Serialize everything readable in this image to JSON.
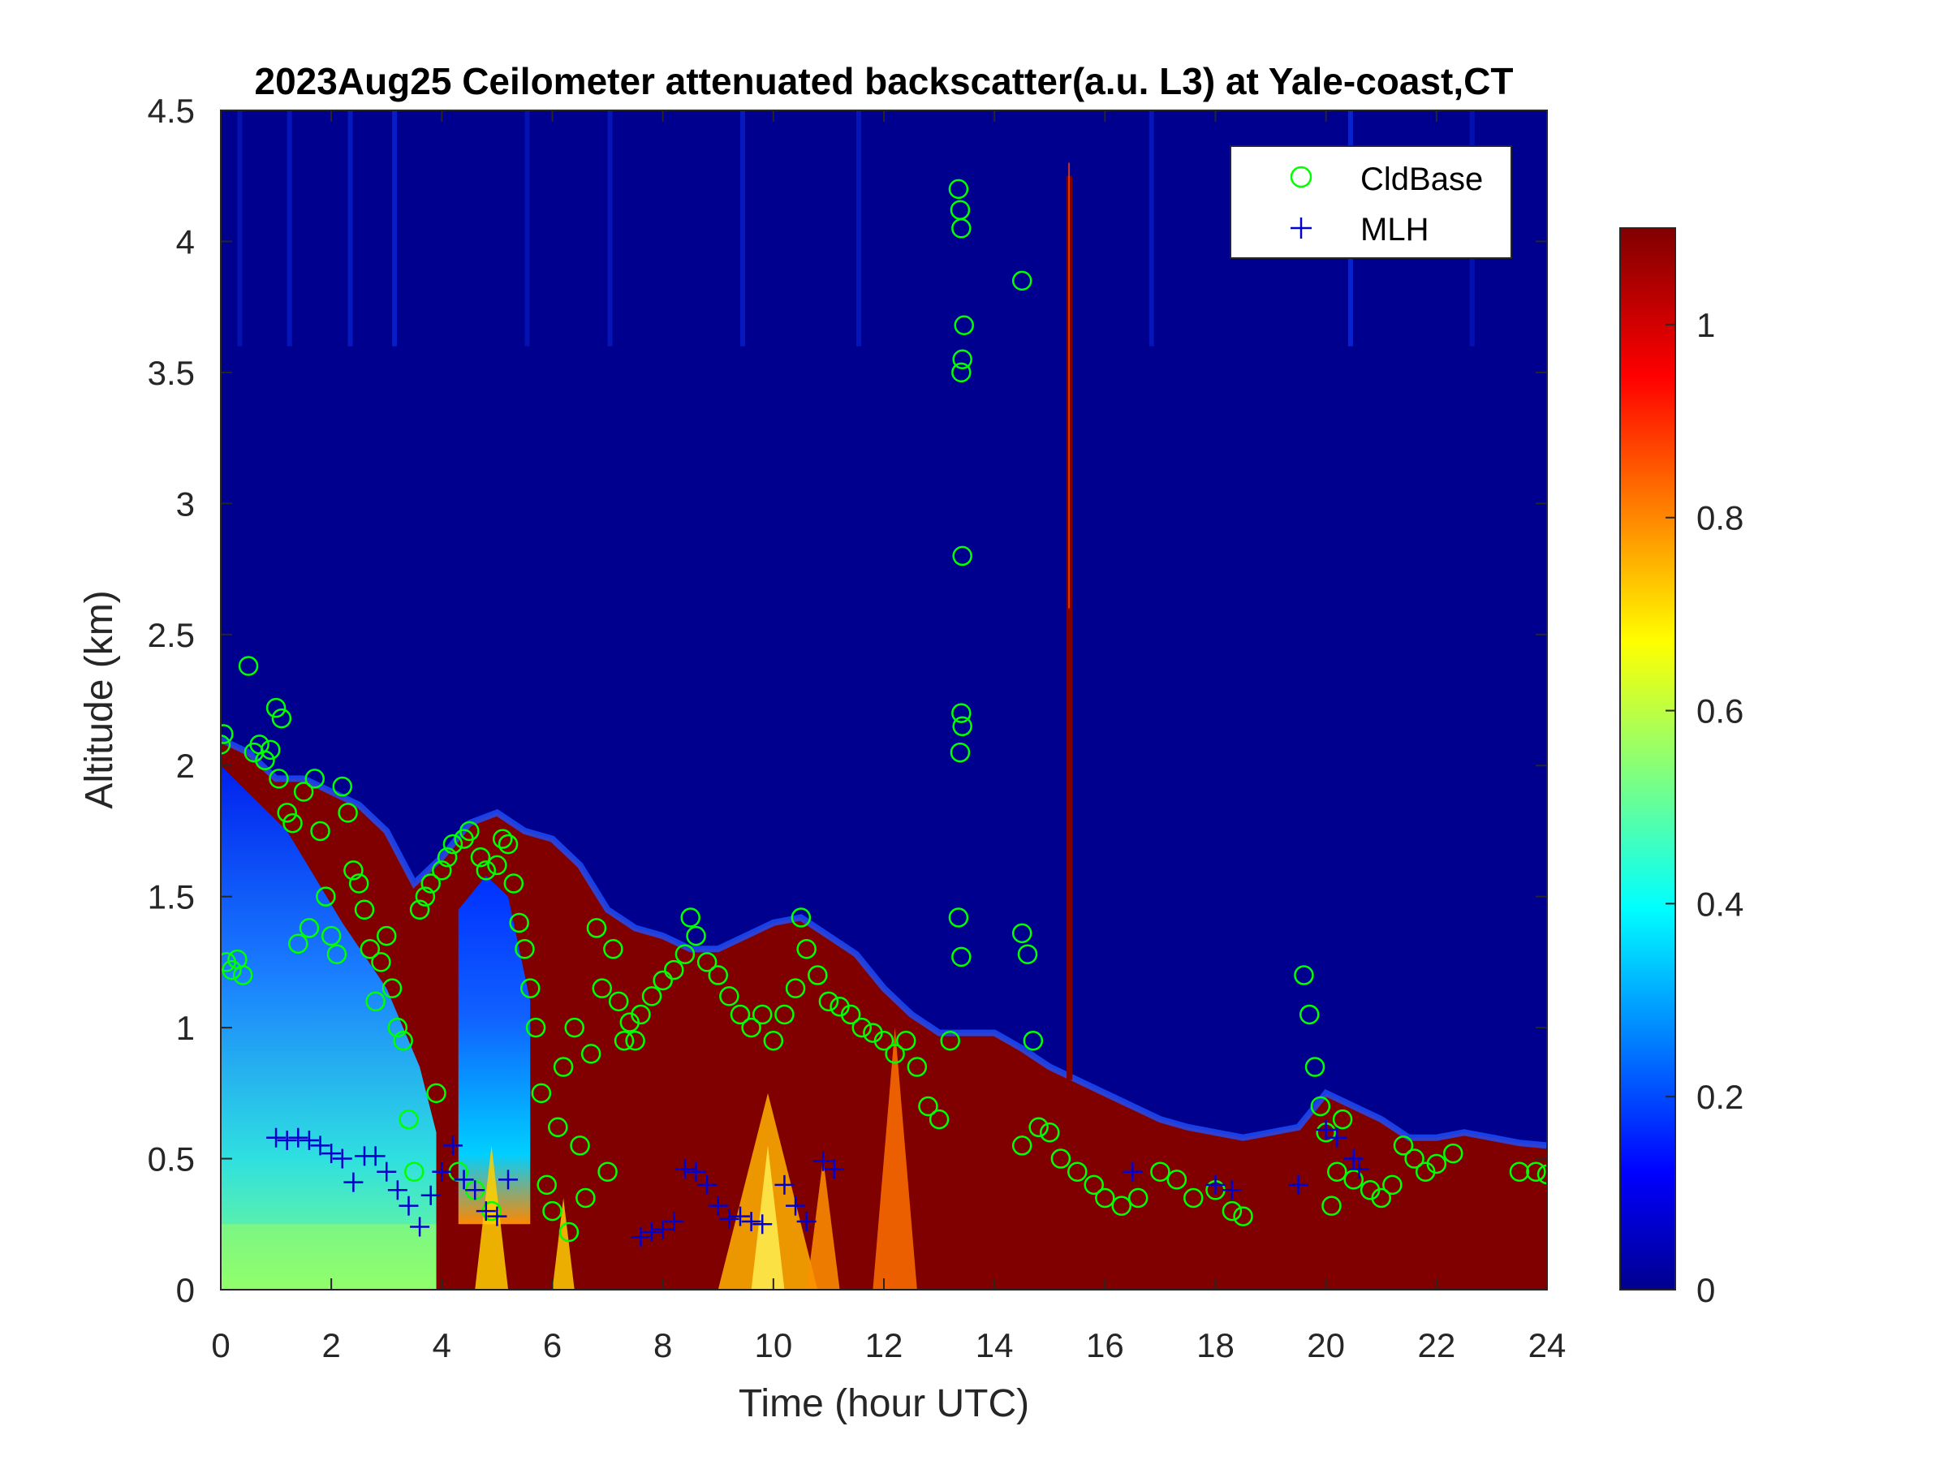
{
  "chart_data": {
    "type": "heatmap",
    "title": "2023Aug25 Ceilometer attenuated backscatter(a.u. L3) at Yale-coast,CT",
    "xlabel": "Time (hour UTC)",
    "ylabel": "Altitude (km)",
    "xlim": [
      0,
      24
    ],
    "ylim": [
      0,
      4.5
    ],
    "xticks": [
      0,
      2,
      4,
      6,
      8,
      10,
      12,
      14,
      16,
      18,
      20,
      22,
      24
    ],
    "yticks": [
      0,
      0.5,
      1,
      1.5,
      2,
      2.5,
      3,
      3.5,
      4,
      4.5
    ],
    "yticklabels": [
      "0",
      "0.5",
      "1",
      "1.5",
      "2",
      "2.5",
      "3",
      "3.5",
      "4",
      "4.5"
    ],
    "colorbar": {
      "colormap": "jet",
      "clim": [
        0,
        1.1
      ],
      "ticks": [
        0,
        0.2,
        0.4,
        0.6,
        0.8,
        1
      ],
      "ticklabels": [
        "0",
        "0.2",
        "0.4",
        "0.6",
        "0.8",
        "1"
      ]
    },
    "legend": {
      "position": "top-right",
      "entries": [
        {
          "label": "CldBase",
          "marker": "circle",
          "color": "#00ff00"
        },
        {
          "label": "MLH",
          "marker": "plus",
          "color": "#0000cd"
        }
      ]
    },
    "background": {
      "top_contour_km": [
        [
          0,
          2.1
        ],
        [
          0.5,
          2.05
        ],
        [
          1,
          1.95
        ],
        [
          1.5,
          1.95
        ],
        [
          2,
          1.9
        ],
        [
          2.5,
          1.85
        ],
        [
          3,
          1.75
        ],
        [
          3.5,
          1.55
        ],
        [
          4,
          1.65
        ],
        [
          4.5,
          1.78
        ],
        [
          5,
          1.82
        ],
        [
          5.5,
          1.75
        ],
        [
          6,
          1.72
        ],
        [
          6.5,
          1.62
        ],
        [
          7,
          1.45
        ],
        [
          7.5,
          1.38
        ],
        [
          8,
          1.35
        ],
        [
          8.5,
          1.3
        ],
        [
          9,
          1.3
        ],
        [
          9.5,
          1.35
        ],
        [
          10,
          1.4
        ],
        [
          10.5,
          1.42
        ],
        [
          11,
          1.35
        ],
        [
          11.5,
          1.28
        ],
        [
          12,
          1.15
        ],
        [
          12.5,
          1.05
        ],
        [
          13,
          0.98
        ],
        [
          13.5,
          0.98
        ],
        [
          14,
          0.98
        ],
        [
          14.5,
          0.92
        ],
        [
          15,
          0.85
        ],
        [
          15.5,
          0.8
        ],
        [
          16,
          0.75
        ],
        [
          16.5,
          0.7
        ],
        [
          17,
          0.65
        ],
        [
          17.5,
          0.62
        ],
        [
          18,
          0.6
        ],
        [
          18.5,
          0.58
        ],
        [
          19,
          0.6
        ],
        [
          19.5,
          0.62
        ],
        [
          20,
          0.75
        ],
        [
          20.5,
          0.7
        ],
        [
          21,
          0.65
        ],
        [
          21.5,
          0.58
        ],
        [
          22,
          0.58
        ],
        [
          22.5,
          0.6
        ],
        [
          23,
          0.58
        ],
        [
          23.5,
          0.56
        ],
        [
          24,
          0.55
        ]
      ],
      "low_regions": [
        {
          "from": 0,
          "to": 3.9,
          "level": "low-scattering aerosol"
        },
        {
          "from": 4.3,
          "to": 5.6,
          "level": "low-scattering aerosol"
        }
      ],
      "spike_hour": 15.35
    },
    "series": [
      {
        "name": "CldBase",
        "points": [
          [
            0,
            2.08
          ],
          [
            0.05,
            2.12
          ],
          [
            0.1,
            1.25
          ],
          [
            0.2,
            1.22
          ],
          [
            0.3,
            1.26
          ],
          [
            0.4,
            1.2
          ],
          [
            0.5,
            2.38
          ],
          [
            0.6,
            2.05
          ],
          [
            0.7,
            2.08
          ],
          [
            0.8,
            2.02
          ],
          [
            0.9,
            2.06
          ],
          [
            1.0,
            2.22
          ],
          [
            1.05,
            1.95
          ],
          [
            1.1,
            2.18
          ],
          [
            1.2,
            1.82
          ],
          [
            1.3,
            1.78
          ],
          [
            1.4,
            1.32
          ],
          [
            1.5,
            1.9
          ],
          [
            1.6,
            1.38
          ],
          [
            1.7,
            1.95
          ],
          [
            1.8,
            1.75
          ],
          [
            1.9,
            1.5
          ],
          [
            2.0,
            1.35
          ],
          [
            2.1,
            1.28
          ],
          [
            2.2,
            1.92
          ],
          [
            2.3,
            1.82
          ],
          [
            2.4,
            1.6
          ],
          [
            2.5,
            1.55
          ],
          [
            2.6,
            1.45
          ],
          [
            2.7,
            1.3
          ],
          [
            2.8,
            1.1
          ],
          [
            2.9,
            1.25
          ],
          [
            3.0,
            1.35
          ],
          [
            3.1,
            1.15
          ],
          [
            3.2,
            1.0
          ],
          [
            3.3,
            0.95
          ],
          [
            3.4,
            0.65
          ],
          [
            3.5,
            0.45
          ],
          [
            3.6,
            1.45
          ],
          [
            3.7,
            1.5
          ],
          [
            3.8,
            1.55
          ],
          [
            3.9,
            0.75
          ],
          [
            4.0,
            1.6
          ],
          [
            4.1,
            1.65
          ],
          [
            4.2,
            1.7
          ],
          [
            4.3,
            0.45
          ],
          [
            4.4,
            1.72
          ],
          [
            4.5,
            1.75
          ],
          [
            4.6,
            0.38
          ],
          [
            4.7,
            1.65
          ],
          [
            4.8,
            1.6
          ],
          [
            4.9,
            0.3
          ],
          [
            5.0,
            1.62
          ],
          [
            5.1,
            1.72
          ],
          [
            5.2,
            1.7
          ],
          [
            5.3,
            1.55
          ],
          [
            5.4,
            1.4
          ],
          [
            5.5,
            1.3
          ],
          [
            5.6,
            1.15
          ],
          [
            5.7,
            1.0
          ],
          [
            5.8,
            0.75
          ],
          [
            5.9,
            0.4
          ],
          [
            6.0,
            0.3
          ],
          [
            6.1,
            0.62
          ],
          [
            6.2,
            0.85
          ],
          [
            6.3,
            0.22
          ],
          [
            6.4,
            1.0
          ],
          [
            6.5,
            0.55
          ],
          [
            6.6,
            0.35
          ],
          [
            6.7,
            0.9
          ],
          [
            6.8,
            1.38
          ],
          [
            6.9,
            1.15
          ],
          [
            7.0,
            0.45
          ],
          [
            7.1,
            1.3
          ],
          [
            7.2,
            1.1
          ],
          [
            7.3,
            0.95
          ],
          [
            7.4,
            1.02
          ],
          [
            7.5,
            0.95
          ],
          [
            7.6,
            1.05
          ],
          [
            7.8,
            1.12
          ],
          [
            8.0,
            1.18
          ],
          [
            8.2,
            1.22
          ],
          [
            8.4,
            1.28
          ],
          [
            8.5,
            1.42
          ],
          [
            8.6,
            1.35
          ],
          [
            8.8,
            1.25
          ],
          [
            9.0,
            1.2
          ],
          [
            9.2,
            1.12
          ],
          [
            9.4,
            1.05
          ],
          [
            9.6,
            1.0
          ],
          [
            9.8,
            1.05
          ],
          [
            10.0,
            0.95
          ],
          [
            10.2,
            1.05
          ],
          [
            10.4,
            1.15
          ],
          [
            10.5,
            1.42
          ],
          [
            10.6,
            1.3
          ],
          [
            10.8,
            1.2
          ],
          [
            11.0,
            1.1
          ],
          [
            11.2,
            1.08
          ],
          [
            11.4,
            1.05
          ],
          [
            11.6,
            1.0
          ],
          [
            11.8,
            0.98
          ],
          [
            12.0,
            0.95
          ],
          [
            12.2,
            0.9
          ],
          [
            12.4,
            0.95
          ],
          [
            12.6,
            0.85
          ],
          [
            12.8,
            0.7
          ],
          [
            13.0,
            0.65
          ],
          [
            13.2,
            0.95
          ],
          [
            13.35,
            4.2
          ],
          [
            13.38,
            4.12
          ],
          [
            13.4,
            4.05
          ],
          [
            13.42,
            3.55
          ],
          [
            13.4,
            3.5
          ],
          [
            13.45,
            3.68
          ],
          [
            13.42,
            2.8
          ],
          [
            13.4,
            2.2
          ],
          [
            13.42,
            2.15
          ],
          [
            13.38,
            2.05
          ],
          [
            13.35,
            1.42
          ],
          [
            13.4,
            1.27
          ],
          [
            14.5,
            3.85
          ],
          [
            14.5,
            1.36
          ],
          [
            14.6,
            1.28
          ],
          [
            14.5,
            0.55
          ],
          [
            14.7,
            0.95
          ],
          [
            14.8,
            0.62
          ],
          [
            15.0,
            0.6
          ],
          [
            15.2,
            0.5
          ],
          [
            15.5,
            0.45
          ],
          [
            15.8,
            0.4
          ],
          [
            16.0,
            0.35
          ],
          [
            16.3,
            0.32
          ],
          [
            16.6,
            0.35
          ],
          [
            17.0,
            0.45
          ],
          [
            17.3,
            0.42
          ],
          [
            17.6,
            0.35
          ],
          [
            18.0,
            0.38
          ],
          [
            18.3,
            0.3
          ],
          [
            18.5,
            0.28
          ],
          [
            19.6,
            1.2
          ],
          [
            19.7,
            1.05
          ],
          [
            19.8,
            0.85
          ],
          [
            19.9,
            0.7
          ],
          [
            20.0,
            0.6
          ],
          [
            20.1,
            0.32
          ],
          [
            20.2,
            0.45
          ],
          [
            20.3,
            0.65
          ],
          [
            20.5,
            0.42
          ],
          [
            20.8,
            0.38
          ],
          [
            21.0,
            0.35
          ],
          [
            21.2,
            0.4
          ],
          [
            21.4,
            0.55
          ],
          [
            21.6,
            0.5
          ],
          [
            21.8,
            0.45
          ],
          [
            22.0,
            0.48
          ],
          [
            22.3,
            0.52
          ],
          [
            23.5,
            0.45
          ],
          [
            23.8,
            0.45
          ],
          [
            24.0,
            0.44
          ]
        ]
      },
      {
        "name": "MLH",
        "points": [
          [
            1.0,
            0.58
          ],
          [
            1.2,
            0.57
          ],
          [
            1.4,
            0.58
          ],
          [
            1.6,
            0.57
          ],
          [
            1.8,
            0.55
          ],
          [
            2.0,
            0.52
          ],
          [
            2.2,
            0.5
          ],
          [
            2.4,
            0.41
          ],
          [
            2.6,
            0.51
          ],
          [
            2.8,
            0.51
          ],
          [
            3.0,
            0.45
          ],
          [
            3.2,
            0.38
          ],
          [
            3.4,
            0.32
          ],
          [
            3.6,
            0.24
          ],
          [
            3.8,
            0.36
          ],
          [
            4.0,
            0.45
          ],
          [
            4.2,
            0.55
          ],
          [
            4.4,
            0.42
          ],
          [
            4.6,
            0.38
          ],
          [
            4.8,
            0.3
          ],
          [
            5.0,
            0.28
          ],
          [
            5.2,
            0.42
          ],
          [
            7.6,
            0.2
          ],
          [
            7.8,
            0.22
          ],
          [
            8.0,
            0.23
          ],
          [
            8.2,
            0.26
          ],
          [
            8.4,
            0.46
          ],
          [
            8.6,
            0.45
          ],
          [
            8.8,
            0.4
          ],
          [
            9.0,
            0.32
          ],
          [
            9.2,
            0.27
          ],
          [
            9.4,
            0.28
          ],
          [
            9.6,
            0.26
          ],
          [
            9.8,
            0.25
          ],
          [
            10.2,
            0.4
          ],
          [
            10.4,
            0.32
          ],
          [
            10.6,
            0.26
          ],
          [
            10.9,
            0.49
          ],
          [
            11.1,
            0.46
          ],
          [
            16.5,
            0.45
          ],
          [
            18.0,
            0.4
          ],
          [
            18.3,
            0.38
          ],
          [
            19.5,
            0.4
          ],
          [
            20.0,
            0.61
          ],
          [
            20.2,
            0.58
          ],
          [
            20.5,
            0.5
          ],
          [
            20.6,
            0.46
          ]
        ]
      }
    ]
  }
}
